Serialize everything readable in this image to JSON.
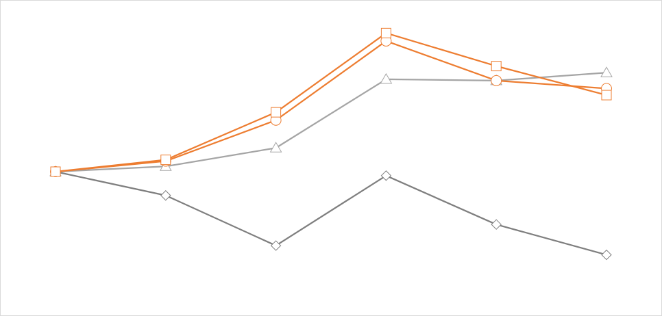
{
  "chart_data": {
    "type": "line",
    "title": "",
    "xlabel": "",
    "ylabel": "",
    "x": [
      1,
      2,
      3,
      4,
      5,
      6
    ],
    "ylim": [
      -1.2,
      1.2
    ],
    "grid": false,
    "legend": "none",
    "series": [
      {
        "marker": "square",
        "color": "#ED7D31",
        "values": [
          0.0,
          0.09,
          0.45,
          1.05,
          0.8,
          0.58
        ]
      },
      {
        "marker": "circle",
        "color": "#ED7D31",
        "values": [
          0.0,
          0.08,
          0.39,
          0.99,
          0.69,
          0.63
        ]
      },
      {
        "marker": "triangle",
        "color": "#A5A5A5",
        "values": [
          0.0,
          0.04,
          0.18,
          0.7,
          0.69,
          0.75
        ]
      },
      {
        "marker": "diamond",
        "color": "#7F7F7F",
        "values": [
          0.0,
          -0.18,
          -0.56,
          -0.03,
          -0.4,
          -0.63
        ]
      }
    ]
  }
}
